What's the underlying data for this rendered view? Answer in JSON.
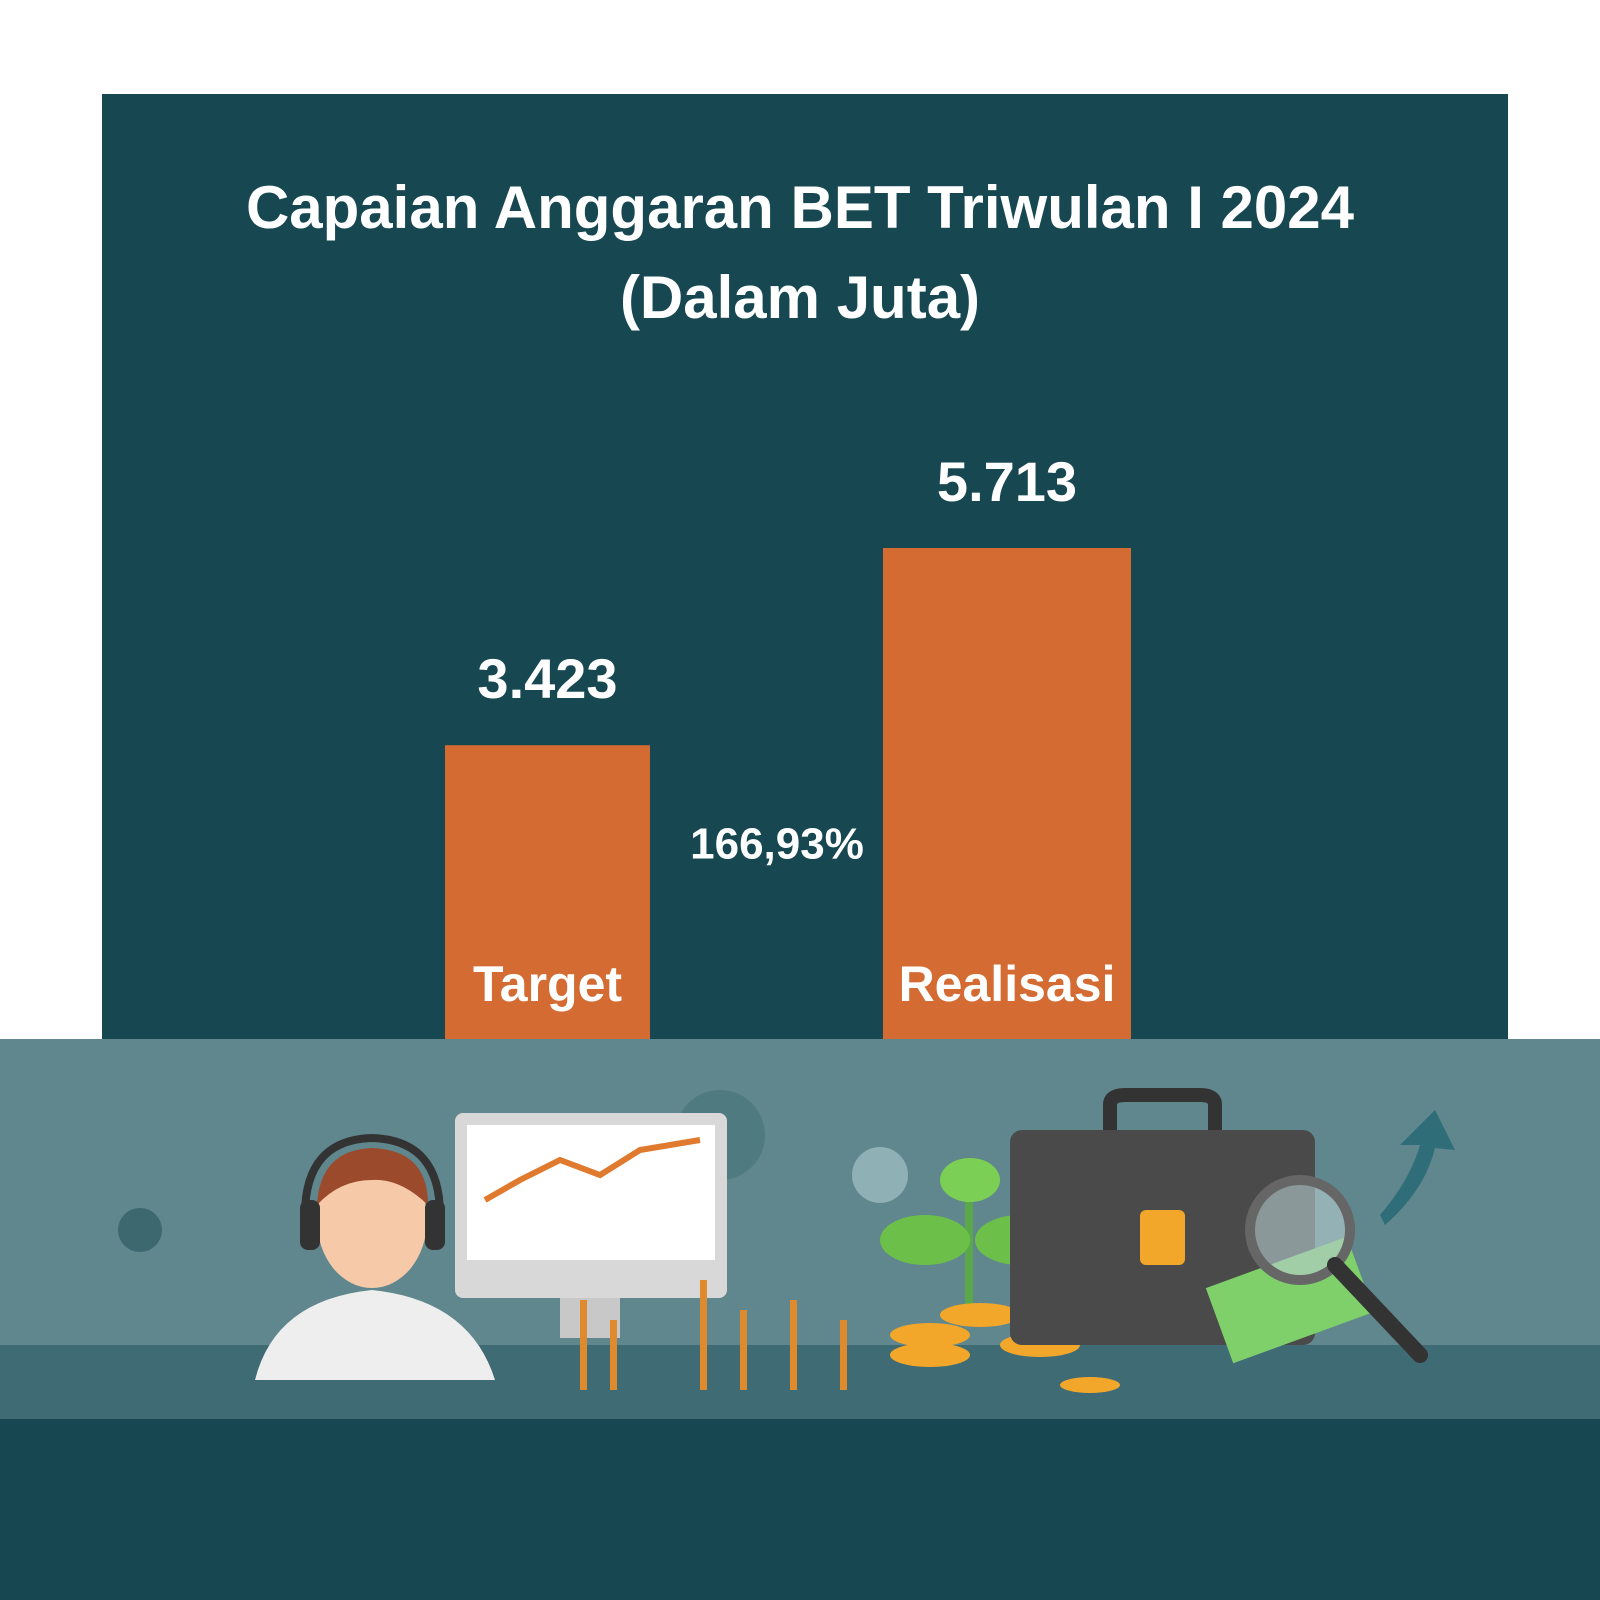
{
  "chart_data": {
    "type": "bar",
    "title": "Capaian Anggaran BET Triwulan I 2024",
    "subtitle": "(Dalam Juta)",
    "categories": [
      "Target",
      "Realisasi"
    ],
    "values": [
      3423,
      5713
    ],
    "value_labels": [
      "3.423",
      "5.713"
    ],
    "color": "#d46b32",
    "annotation": "166,93%"
  }
}
